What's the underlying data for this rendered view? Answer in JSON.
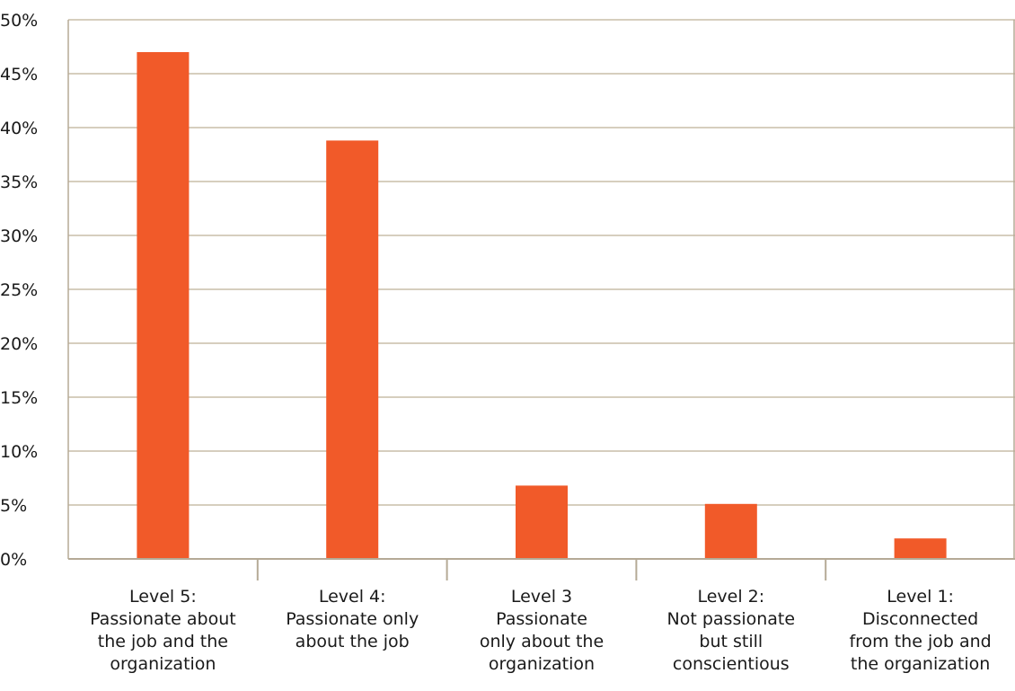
{
  "chart_data": {
    "type": "bar",
    "title": "",
    "xlabel": "",
    "ylabel": "",
    "categories": [
      [
        "Level 5:",
        "Passionate about",
        "the job and the",
        "organization"
      ],
      [
        "Level 4:",
        "Passionate only",
        "about the job"
      ],
      [
        "Level 3",
        "Passionate",
        "only about the",
        "organization"
      ],
      [
        "Level 2:",
        "Not passionate",
        "but still",
        "conscientious"
      ],
      [
        "Level 1:",
        "Disconnected",
        "from the job and",
        "the organization"
      ]
    ],
    "values": [
      47,
      38.8,
      6.8,
      5.1,
      1.9
    ],
    "ylim": [
      0,
      50
    ],
    "yticks": [
      {
        "value": 0,
        "label": "0%"
      },
      {
        "value": 5,
        "label": "5%"
      },
      {
        "value": 10,
        "label": "10%"
      },
      {
        "value": 15,
        "label": "15%"
      },
      {
        "value": 20,
        "label": "20%"
      },
      {
        "value": 25,
        "label": "25%"
      },
      {
        "value": 30,
        "label": "30%"
      },
      {
        "value": 35,
        "label": "35%"
      },
      {
        "value": 40,
        "label": "40%"
      },
      {
        "value": 45,
        "label": "45%"
      },
      {
        "value": 50,
        "label": "50%"
      }
    ],
    "grid": true,
    "legend": "none",
    "colors": {
      "bar": "#f15a29",
      "grid": "#c9bda8",
      "axis": "#b5aa96",
      "text": "#1a1a1a"
    }
  }
}
